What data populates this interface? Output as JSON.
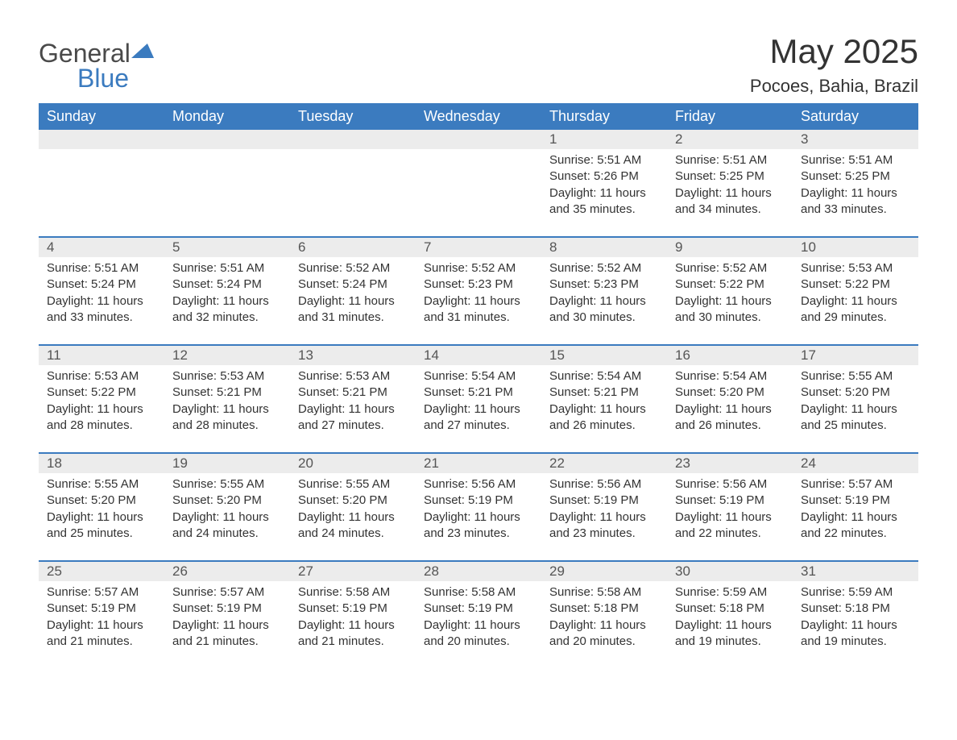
{
  "logo": {
    "text1": "General",
    "text2": "Blue"
  },
  "header": {
    "monthTitle": "May 2025",
    "location": "Pocoes, Bahia, Brazil"
  },
  "colors": {
    "headerBg": "#3b7bbf",
    "headerText": "#ffffff",
    "dayNumBg": "#ececec",
    "bodyText": "#333333",
    "weekDivider": "#3b7bbf",
    "background": "#ffffff"
  },
  "dayNames": [
    "Sunday",
    "Monday",
    "Tuesday",
    "Wednesday",
    "Thursday",
    "Friday",
    "Saturday"
  ],
  "weeks": [
    {
      "nums": [
        "",
        "",
        "",
        "",
        "1",
        "2",
        "3"
      ],
      "cells": [
        null,
        null,
        null,
        null,
        {
          "sunrise": "5:51 AM",
          "sunset": "5:26 PM",
          "daylight": "11 hours and 35 minutes."
        },
        {
          "sunrise": "5:51 AM",
          "sunset": "5:25 PM",
          "daylight": "11 hours and 34 minutes."
        },
        {
          "sunrise": "5:51 AM",
          "sunset": "5:25 PM",
          "daylight": "11 hours and 33 minutes."
        }
      ]
    },
    {
      "nums": [
        "4",
        "5",
        "6",
        "7",
        "8",
        "9",
        "10"
      ],
      "cells": [
        {
          "sunrise": "5:51 AM",
          "sunset": "5:24 PM",
          "daylight": "11 hours and 33 minutes."
        },
        {
          "sunrise": "5:51 AM",
          "sunset": "5:24 PM",
          "daylight": "11 hours and 32 minutes."
        },
        {
          "sunrise": "5:52 AM",
          "sunset": "5:24 PM",
          "daylight": "11 hours and 31 minutes."
        },
        {
          "sunrise": "5:52 AM",
          "sunset": "5:23 PM",
          "daylight": "11 hours and 31 minutes."
        },
        {
          "sunrise": "5:52 AM",
          "sunset": "5:23 PM",
          "daylight": "11 hours and 30 minutes."
        },
        {
          "sunrise": "5:52 AM",
          "sunset": "5:22 PM",
          "daylight": "11 hours and 30 minutes."
        },
        {
          "sunrise": "5:53 AM",
          "sunset": "5:22 PM",
          "daylight": "11 hours and 29 minutes."
        }
      ]
    },
    {
      "nums": [
        "11",
        "12",
        "13",
        "14",
        "15",
        "16",
        "17"
      ],
      "cells": [
        {
          "sunrise": "5:53 AM",
          "sunset": "5:22 PM",
          "daylight": "11 hours and 28 minutes."
        },
        {
          "sunrise": "5:53 AM",
          "sunset": "5:21 PM",
          "daylight": "11 hours and 28 minutes."
        },
        {
          "sunrise": "5:53 AM",
          "sunset": "5:21 PM",
          "daylight": "11 hours and 27 minutes."
        },
        {
          "sunrise": "5:54 AM",
          "sunset": "5:21 PM",
          "daylight": "11 hours and 27 minutes."
        },
        {
          "sunrise": "5:54 AM",
          "sunset": "5:21 PM",
          "daylight": "11 hours and 26 minutes."
        },
        {
          "sunrise": "5:54 AM",
          "sunset": "5:20 PM",
          "daylight": "11 hours and 26 minutes."
        },
        {
          "sunrise": "5:55 AM",
          "sunset": "5:20 PM",
          "daylight": "11 hours and 25 minutes."
        }
      ]
    },
    {
      "nums": [
        "18",
        "19",
        "20",
        "21",
        "22",
        "23",
        "24"
      ],
      "cells": [
        {
          "sunrise": "5:55 AM",
          "sunset": "5:20 PM",
          "daylight": "11 hours and 25 minutes."
        },
        {
          "sunrise": "5:55 AM",
          "sunset": "5:20 PM",
          "daylight": "11 hours and 24 minutes."
        },
        {
          "sunrise": "5:55 AM",
          "sunset": "5:20 PM",
          "daylight": "11 hours and 24 minutes."
        },
        {
          "sunrise": "5:56 AM",
          "sunset": "5:19 PM",
          "daylight": "11 hours and 23 minutes."
        },
        {
          "sunrise": "5:56 AM",
          "sunset": "5:19 PM",
          "daylight": "11 hours and 23 minutes."
        },
        {
          "sunrise": "5:56 AM",
          "sunset": "5:19 PM",
          "daylight": "11 hours and 22 minutes."
        },
        {
          "sunrise": "5:57 AM",
          "sunset": "5:19 PM",
          "daylight": "11 hours and 22 minutes."
        }
      ]
    },
    {
      "nums": [
        "25",
        "26",
        "27",
        "28",
        "29",
        "30",
        "31"
      ],
      "cells": [
        {
          "sunrise": "5:57 AM",
          "sunset": "5:19 PM",
          "daylight": "11 hours and 21 minutes."
        },
        {
          "sunrise": "5:57 AM",
          "sunset": "5:19 PM",
          "daylight": "11 hours and 21 minutes."
        },
        {
          "sunrise": "5:58 AM",
          "sunset": "5:19 PM",
          "daylight": "11 hours and 21 minutes."
        },
        {
          "sunrise": "5:58 AM",
          "sunset": "5:19 PM",
          "daylight": "11 hours and 20 minutes."
        },
        {
          "sunrise": "5:58 AM",
          "sunset": "5:18 PM",
          "daylight": "11 hours and 20 minutes."
        },
        {
          "sunrise": "5:59 AM",
          "sunset": "5:18 PM",
          "daylight": "11 hours and 19 minutes."
        },
        {
          "sunrise": "5:59 AM",
          "sunset": "5:18 PM",
          "daylight": "11 hours and 19 minutes."
        }
      ]
    }
  ],
  "labels": {
    "sunrise": "Sunrise:",
    "sunset": "Sunset:",
    "daylight": "Daylight:"
  }
}
